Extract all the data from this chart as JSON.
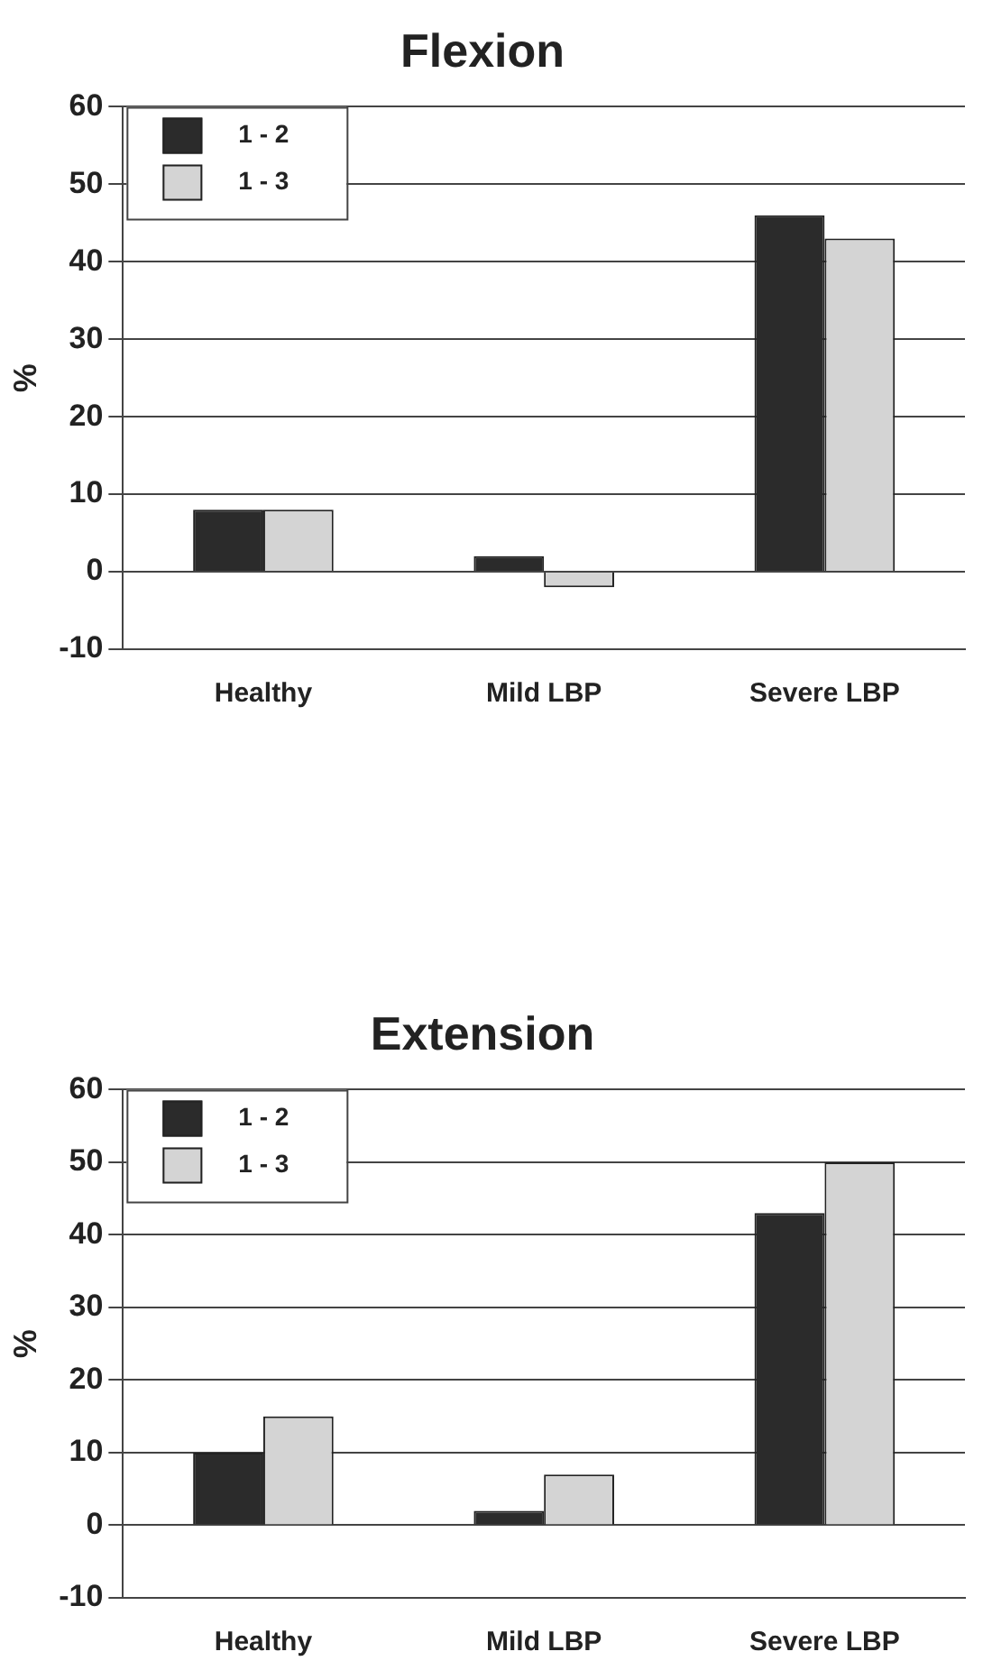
{
  "chart_data": [
    {
      "type": "bar",
      "title": "Flexion",
      "ylabel": "%",
      "categories": [
        "Healthy",
        "Mild LBP",
        "Severe LBP"
      ],
      "series": [
        {
          "name": "1 - 2",
          "color": "#2b2b2b",
          "values": [
            8,
            2,
            46
          ]
        },
        {
          "name": "1 - 3",
          "color": "#d4d4d4",
          "values": [
            8,
            -2,
            43
          ]
        }
      ],
      "ylim": [
        -10,
        60
      ],
      "yticks": [
        -10,
        0,
        10,
        20,
        30,
        40,
        50,
        60
      ],
      "grid": "y",
      "legend": "top left"
    },
    {
      "type": "bar",
      "title": "Extension",
      "ylabel": "%",
      "categories": [
        "Healthy",
        "Mild LBP",
        "Severe LBP"
      ],
      "series": [
        {
          "name": "1 - 2",
          "color": "#2b2b2b",
          "values": [
            10,
            2,
            43
          ]
        },
        {
          "name": "1 - 3",
          "color": "#d4d4d4",
          "values": [
            15,
            7,
            50
          ]
        }
      ],
      "ylim": [
        -10,
        60
      ],
      "yticks": [
        -10,
        0,
        10,
        20,
        30,
        40,
        50,
        60
      ],
      "grid": "y",
      "legend": "top left"
    }
  ]
}
